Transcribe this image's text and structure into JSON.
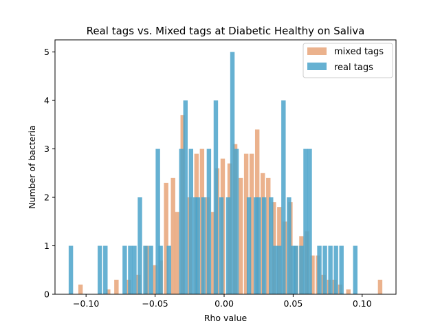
{
  "chart_data": {
    "type": "bar",
    "title": "Real tags vs. Mixed tags at Diabetic Healthy on Saliva",
    "xlabel": "Rho value",
    "ylabel": "Number of bacteria",
    "xlim": [
      -0.1225,
      0.1245
    ],
    "ylim": [
      0,
      5.25
    ],
    "xticks": [
      -0.1,
      -0.05,
      0.0,
      0.05,
      0.1
    ],
    "xtick_labels": [
      "−0.10",
      "−0.05",
      "0.00",
      "0.05",
      "0.10"
    ],
    "yticks": [
      0,
      1,
      2,
      3,
      4,
      5
    ],
    "ytick_labels": [
      "0",
      "1",
      "2",
      "3",
      "4",
      "5"
    ],
    "grid": false,
    "legend_position": "top-right",
    "bar_width": 0.0032,
    "series": [
      {
        "name": "mixed tags",
        "color": "#E69F70",
        "opacity": 0.8,
        "points": [
          [
            -0.104,
            0.2
          ],
          [
            -0.084,
            0.1
          ],
          [
            -0.078,
            0.3
          ],
          [
            -0.069,
            0.3
          ],
          [
            -0.062,
            0.4
          ],
          [
            -0.056,
            1.0
          ],
          [
            -0.05,
            0.6
          ],
          [
            -0.046,
            0.7
          ],
          [
            -0.042,
            2.3
          ],
          [
            -0.037,
            2.4
          ],
          [
            -0.034,
            1.7
          ],
          [
            -0.03,
            3.7
          ],
          [
            -0.025,
            2.0
          ],
          [
            -0.02,
            2.9
          ],
          [
            -0.016,
            3.0
          ],
          [
            -0.012,
            2.0
          ],
          [
            -0.008,
            1.7
          ],
          [
            -0.005,
            2.6
          ],
          [
            -0.001,
            2.8
          ],
          [
            0.004,
            2.7
          ],
          [
            0.008,
            3.1
          ],
          [
            0.012,
            2.4
          ],
          [
            0.016,
            2.9
          ],
          [
            0.02,
            2.9
          ],
          [
            0.024,
            3.4
          ],
          [
            0.028,
            2.5
          ],
          [
            0.032,
            2.4
          ],
          [
            0.036,
            1.9
          ],
          [
            0.04,
            1.8
          ],
          [
            0.044,
            1.5
          ],
          [
            0.048,
            1.9
          ],
          [
            0.052,
            1.0
          ],
          [
            0.056,
            1.2
          ],
          [
            0.06,
            1.3
          ],
          [
            0.064,
            0.8
          ],
          [
            0.068,
            0.8
          ],
          [
            0.072,
            0.4
          ],
          [
            0.076,
            0.3
          ],
          [
            0.08,
            0.3
          ],
          [
            0.084,
            0.2
          ],
          [
            0.09,
            0.1
          ],
          [
            0.113,
            0.3
          ]
        ]
      },
      {
        "name": "real tags",
        "color": "#4BA3CA",
        "opacity": 0.85,
        "points": [
          [
            -0.111,
            1
          ],
          [
            -0.09,
            1
          ],
          [
            -0.086,
            1
          ],
          [
            -0.072,
            1
          ],
          [
            -0.068,
            1
          ],
          [
            -0.065,
            1
          ],
          [
            -0.061,
            2
          ],
          [
            -0.057,
            1
          ],
          [
            -0.053,
            1
          ],
          [
            -0.048,
            3
          ],
          [
            -0.046,
            1
          ],
          [
            -0.04,
            1
          ],
          [
            -0.031,
            3
          ],
          [
            -0.028,
            4
          ],
          [
            -0.024,
            3
          ],
          [
            -0.021,
            2
          ],
          [
            -0.019,
            2
          ],
          [
            -0.015,
            2
          ],
          [
            -0.011,
            3
          ],
          [
            -0.006,
            4
          ],
          [
            -0.002,
            2
          ],
          [
            0.003,
            2
          ],
          [
            0.006,
            5
          ],
          [
            0.009,
            3
          ],
          [
            0.018,
            2
          ],
          [
            0.023,
            2
          ],
          [
            0.025,
            2
          ],
          [
            0.029,
            2
          ],
          [
            0.034,
            2
          ],
          [
            0.037,
            1
          ],
          [
            0.04,
            1
          ],
          [
            0.043,
            4
          ],
          [
            0.047,
            2
          ],
          [
            0.05,
            1
          ],
          [
            0.052,
            1
          ],
          [
            0.056,
            1
          ],
          [
            0.059,
            3
          ],
          [
            0.062,
            3
          ],
          [
            0.069,
            1
          ],
          [
            0.073,
            1
          ],
          [
            0.077,
            1
          ],
          [
            0.081,
            1
          ],
          [
            0.085,
            1
          ],
          [
            0.095,
            1
          ]
        ]
      }
    ]
  }
}
